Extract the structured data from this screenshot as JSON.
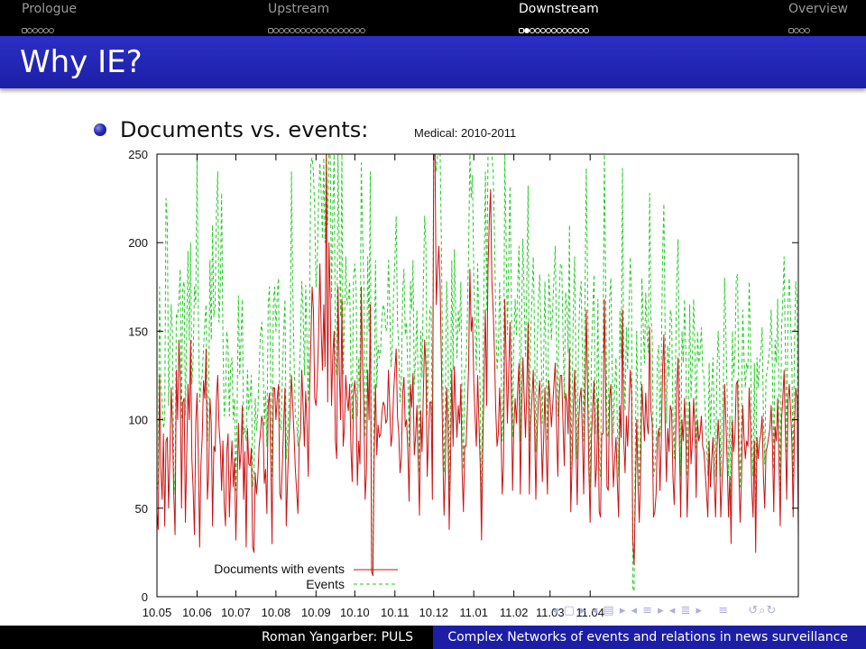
{
  "nav": {
    "sections": [
      {
        "title": "Prologue",
        "frames": 6,
        "current": -1
      },
      {
        "title": "Upstream",
        "frames": 18,
        "current": -1
      },
      {
        "title": "Downstream",
        "frames": 13,
        "current": 1
      },
      {
        "title": "Overview",
        "frames": 4,
        "current": -1
      }
    ],
    "active_section": "Downstream"
  },
  "slide": {
    "title": "Why IE?",
    "bullet": "Documents vs. events:"
  },
  "colors": {
    "title_bar": "#1c1fa6",
    "documents_line": "#cc1111",
    "events_line": "#22cc22"
  },
  "footer": {
    "left": "Roman Yangarber: PULS",
    "right": "Complex Networks of events and relations in news surveillance"
  },
  "chart_data": {
    "type": "line",
    "title": "Medical: 2010-2011",
    "xlabel": "",
    "ylabel": "",
    "ylim": [
      0,
      250
    ],
    "yticks": [
      0,
      50,
      100,
      150,
      200,
      250
    ],
    "xticks": [
      "10.05",
      "10.06",
      "10.07",
      "10.08",
      "10.09",
      "10.10",
      "10.11",
      "10.12",
      "11.01",
      "11.02",
      "11.03",
      "11.04"
    ],
    "x_unit": "day index from 2010-05-01",
    "grid": false,
    "legend_position": "bottom-left",
    "series": [
      {
        "name": "Documents with events",
        "color": "#cc1111",
        "dash": "solid",
        "values": [
          48,
          38,
          125,
          72,
          55,
          92,
          40,
          88,
          90,
          50,
          78,
          118,
          95,
          58,
          35,
          128,
          100,
          145,
          122,
          50,
          110,
          112,
          42,
          80,
          120,
          100,
          145,
          78,
          60,
          35,
          98,
          115,
          80,
          28,
          75,
          90,
          122,
          112,
          140,
          55,
          70,
          112,
          98,
          40,
          85,
          82,
          112,
          125,
          96,
          85,
          60,
          88,
          52,
          40,
          82,
          92,
          45,
          70,
          88,
          62,
          78,
          32,
          63,
          98,
          72,
          82,
          108,
          55,
          82,
          28,
          95,
          75,
          74,
          84,
          28,
          25,
          70,
          58,
          68,
          85,
          92,
          102,
          98,
          64,
          72,
          47,
          108,
          115,
          78,
          30,
          118,
          118,
          100,
          112,
          120,
          58,
          55,
          75,
          98,
          118,
          40,
          66,
          88,
          104,
          125,
          108,
          92,
          72,
          60,
          47,
          87,
          92,
          128,
          108,
          85,
          116,
          98,
          68,
          115,
          143,
          175,
          162,
          112,
          108,
          122,
          148,
          188,
          150,
          128,
          165,
          130,
          250,
          110,
          200,
          168,
          108,
          137,
          150,
          88,
          78,
          175,
          128,
          100,
          168,
          85,
          95,
          125,
          112,
          105,
          120,
          84,
          65,
          114,
          122,
          110,
          63,
          88,
          75,
          175,
          132,
          108,
          55,
          70,
          128,
          100,
          165,
          14,
          12,
          80,
          120,
          80,
          97,
          90,
          92,
          104,
          110,
          108,
          98,
          100,
          128,
          108,
          85,
          92,
          115,
          128,
          140,
          102,
          92,
          70,
          78,
          115,
          124,
          96,
          100,
          83,
          54,
          120,
          107,
          126,
          80,
          90,
          108,
          78,
          46,
          105,
          82,
          115,
          145,
          130,
          68,
          90,
          110,
          110,
          55,
          250,
          250,
          165,
          185,
          198,
          175,
          130,
          85,
          46,
          72,
          118,
          98,
          38,
          75,
          128,
          85,
          130,
          108,
          90,
          108,
          98,
          120,
          70,
          48,
          85,
          85,
          105,
          130,
          185,
          150,
          158,
          122,
          102,
          85,
          125,
          98,
          74,
          32,
          85,
          124,
          162,
          108,
          186,
          212,
          230,
          178,
          162,
          138,
          105,
          85,
          92,
          118,
          95,
          58,
          75,
          168,
          135,
          98,
          126,
          155,
          118,
          60,
          96,
          112,
          98,
          118,
          132,
          58,
          105,
          135,
          112,
          90,
          118,
          155,
          58,
          98,
          112,
          128,
          98,
          55,
          92,
          112,
          122,
          98,
          65,
          88,
          118,
          82,
          58,
          122,
          112,
          96,
          108,
          120,
          132,
          96,
          68,
          112,
          125,
          125,
          98,
          74,
          115,
          110,
          92,
          140,
          48,
          75,
          108,
          128,
          85,
          52,
          96,
          112,
          118,
          92,
          58,
          112,
          162,
          118,
          72,
          42,
          90,
          108,
          122,
          62,
          74,
          112,
          48,
          45,
          92,
          92,
          168,
          118,
          62,
          60,
          112,
          120,
          88,
          62,
          78,
          90,
          65,
          45,
          108,
          90,
          162,
          88,
          70,
          102,
          85,
          108,
          128,
          115,
          32,
          18,
          60,
          100,
          64,
          42,
          68,
          120,
          104,
          88,
          115,
          98,
          92,
          152,
          105,
          98,
          45,
          48,
          58,
          90,
          95,
          60,
          88,
          128,
          148,
          98,
          65,
          95,
          82,
          108,
          105,
          68,
          52,
          85,
          118,
          135,
          88,
          45,
          100,
          88,
          112,
          92,
          45,
          72,
          110,
          75,
          88,
          112,
          95,
          56,
          100,
          88,
          92,
          102,
          85,
          82,
          70,
          58,
          45,
          88,
          62,
          78,
          90,
          65,
          45,
          82,
          100,
          85,
          45,
          65,
          80,
          120,
          98,
          75,
          45,
          68,
          30,
          100,
          82,
          92,
          120,
          122,
          70,
          42,
          65,
          108,
          90,
          78,
          88,
          85,
          118,
          95,
          60,
          45,
          88,
          25,
          90,
          78,
          88,
          92,
          102,
          68,
          50,
          82,
          85,
          90,
          95,
          108,
          85,
          48,
          96,
          88,
          112,
          76,
          40,
          100,
          112,
          128,
          92,
          55,
          110,
          120,
          105,
          88,
          45,
          95,
          118,
          112,
          35
        ]
      },
      {
        "name": "Events",
        "color": "#22cc22",
        "dash": "dashed",
        "values": [
          60,
          65,
          175,
          120,
          110,
          95,
          100,
          225,
          212,
          108,
          140,
          165,
          148,
          70,
          58,
          160,
          158,
          168,
          185,
          100,
          175,
          178,
          102,
          150,
          195,
          145,
          200,
          120,
          135,
          175,
          165,
          250,
          160,
          110,
          120,
          125,
          140,
          155,
          165,
          88,
          118,
          190,
          145,
          210,
          158,
          165,
          218,
          240,
          155,
          175,
          228,
          148,
          102,
          110,
          150,
          142,
          102,
          130,
          135,
          100,
          112,
          60,
          108,
          170,
          125,
          145,
          168,
          92,
          95,
          88,
          128,
          105,
          112,
          125,
          62,
          68,
          112,
          94,
          104,
          128,
          148,
          155,
          138,
          96,
          116,
          85,
          165,
          175,
          120,
          68,
          166,
          175,
          150,
          170,
          180,
          98,
          94,
          125,
          150,
          168,
          78,
          92,
          108,
          128,
          240,
          175,
          135,
          102,
          100,
          85,
          125,
          144,
          178,
          162,
          125,
          176,
          145,
          110,
          162,
          245,
          248,
          240,
          218,
          175,
          190,
          225,
          245,
          228,
          202,
          248,
          200,
          250,
          210,
          250,
          250,
          168,
          220,
          250,
          135,
          125,
          250,
          195,
          158,
          250,
          125,
          155,
          192,
          165,
          168,
          178,
          126,
          100,
          180,
          188,
          175,
          102,
          135,
          116,
          245,
          205,
          178,
          90,
          112,
          192,
          150,
          240,
          15,
          12,
          120,
          190,
          118,
          142,
          135,
          140,
          158,
          165,
          162,
          150,
          152,
          190,
          165,
          130,
          140,
          172,
          190,
          215,
          155,
          140,
          110,
          122,
          172,
          185,
          148,
          155,
          125,
          84,
          178,
          162,
          190,
          120,
          135,
          162,
          118,
          70,
          150,
          124,
          175,
          215,
          198,
          102,
          138,
          162,
          164,
          88,
          250,
          250,
          240,
          250,
          250,
          250,
          196,
          128,
          70,
          108,
          178,
          150,
          60,
          112,
          190,
          128,
          196,
          162,
          135,
          162,
          150,
          178,
          105,
          72,
          128,
          128,
          158,
          196,
          250,
          225,
          238,
          182,
          152,
          128,
          188,
          150,
          112,
          48,
          128,
          185,
          240,
          162,
          250,
          250,
          250,
          250,
          240,
          205,
          158,
          128,
          138,
          178,
          142,
          88,
          112,
          250,
          202,
          148,
          188,
          232,
          175,
          90,
          145,
          168,
          148,
          178,
          198,
          88,
          158,
          202,
          168,
          135,
          178,
          232,
          88,
          148,
          168,
          192,
          148,
          82,
          138,
          168,
          182,
          148,
          98,
          132,
          178,
          124,
          88,
          182,
          168,
          145,
          162,
          180,
          198,
          145,
          102,
          168,
          188,
          188,
          148,
          112,
          172,
          165,
          138,
          210,
          72,
          112,
          162,
          192,
          128,
          78,
          145,
          168,
          178,
          138,
          88,
          168,
          242,
          178,
          108,
          62,
          135,
          162,
          182,
          92,
          110,
          168,
          72,
          68,
          138,
          138,
          250,
          178,
          92,
          90,
          168,
          180,
          132,
          92,
          118,
          135,
          98,
          68,
          162,
          135,
          242,
          132,
          105,
          152,
          128,
          162,
          192,
          172,
          5,
          3,
          90,
          150,
          95,
          62,
          102,
          180,
          155,
          132,
          172,
          148,
          138,
          228,
          158,
          148,
          68,
          72,
          88,
          135,
          142,
          90,
          132,
          192,
          222,
          148,
          98,
          142,
          124,
          162,
          158,
          102,
          78,
          128,
          178,
          202,
          132,
          68,
          150,
          132,
          168,
          138,
          68,
          108,
          165,
          112,
          132,
          168,
          142,
          84,
          150,
          132,
          138,
          152,
          128,
          124,
          105,
          88,
          68,
          132,
          92,
          118,
          135,
          98,
          68,
          124,
          150,
          128,
          68,
          98,
          120,
          180,
          148,
          112,
          68,
          102,
          45,
          150,
          124,
          138,
          180,
          182,
          105,
          62,
          98,
          162,
          135,
          118,
          132,
          128,
          178,
          142,
          90,
          68,
          132,
          38,
          135,
          118,
          132,
          138,
          152,
          102,
          75,
          124,
          128,
          135,
          142,
          162,
          128,
          72,
          145,
          132,
          168,
          115,
          60,
          150,
          168,
          192,
          138,
          82,
          165,
          180,
          158,
          132,
          68,
          142,
          178,
          168,
          52
        ]
      }
    ]
  }
}
